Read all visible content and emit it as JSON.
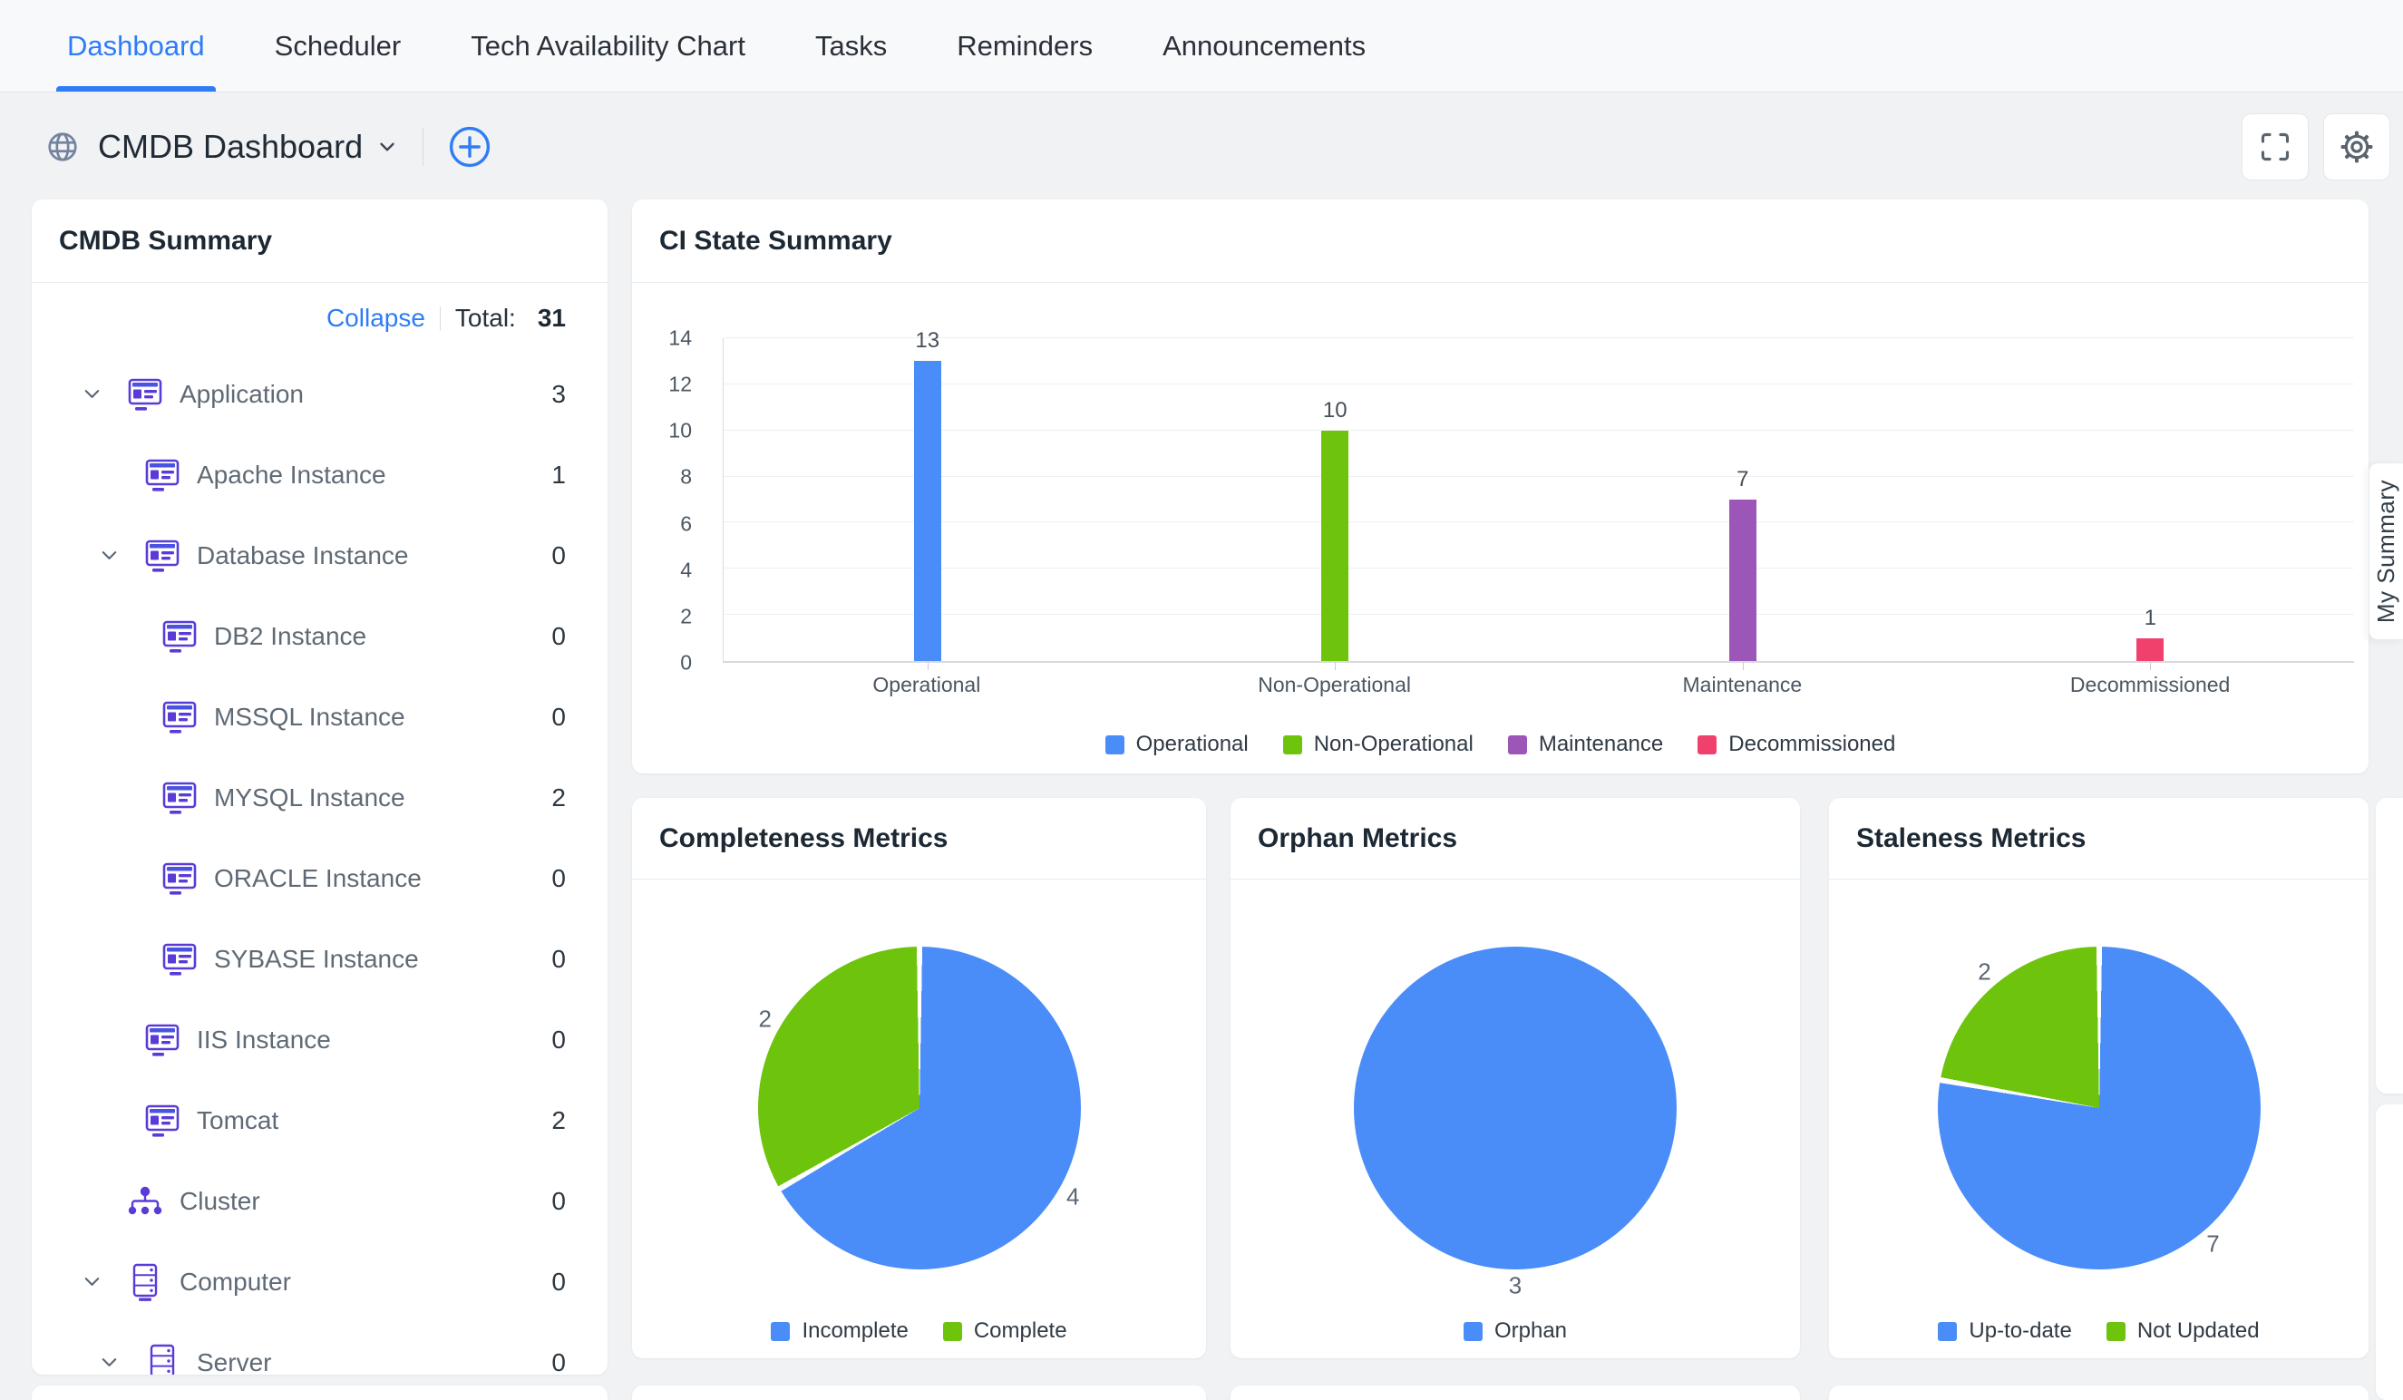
{
  "nav": {
    "tabs": [
      {
        "label": "Dashboard",
        "active": true
      },
      {
        "label": "Scheduler",
        "active": false
      },
      {
        "label": "Tech Availability Chart",
        "active": false
      },
      {
        "label": "Tasks",
        "active": false
      },
      {
        "label": "Reminders",
        "active": false
      },
      {
        "label": "Announcements",
        "active": false
      }
    ]
  },
  "header": {
    "title": "CMDB Dashboard"
  },
  "cmdb_summary": {
    "title": "CMDB Summary",
    "collapse_label": "Collapse",
    "total_label": "Total:",
    "total_value": "31",
    "items": [
      {
        "label": "Application",
        "count": 3,
        "level": 0,
        "expandable": true,
        "icon": "application-icon"
      },
      {
        "label": "Apache Instance",
        "count": 1,
        "level": 1,
        "expandable": false,
        "icon": "application-icon"
      },
      {
        "label": "Database Instance",
        "count": 0,
        "level": 1,
        "expandable": true,
        "icon": "application-icon"
      },
      {
        "label": "DB2 Instance",
        "count": 0,
        "level": 2,
        "expandable": false,
        "icon": "application-icon"
      },
      {
        "label": "MSSQL Instance",
        "count": 0,
        "level": 2,
        "expandable": false,
        "icon": "application-icon"
      },
      {
        "label": "MYSQL Instance",
        "count": 2,
        "level": 2,
        "expandable": false,
        "icon": "application-icon"
      },
      {
        "label": "ORACLE Instance",
        "count": 0,
        "level": 2,
        "expandable": false,
        "icon": "application-icon"
      },
      {
        "label": "SYBASE Instance",
        "count": 0,
        "level": 2,
        "expandable": false,
        "icon": "application-icon"
      },
      {
        "label": "IIS Instance",
        "count": 0,
        "level": 1,
        "expandable": false,
        "icon": "application-icon"
      },
      {
        "label": "Tomcat",
        "count": 2,
        "level": 1,
        "expandable": false,
        "icon": "application-icon"
      },
      {
        "label": "Cluster",
        "count": 0,
        "level": 0,
        "expandable": false,
        "icon": "cluster-icon"
      },
      {
        "label": "Computer",
        "count": 0,
        "level": 0,
        "expandable": true,
        "icon": "computer-icon"
      },
      {
        "label": "Server",
        "count": 0,
        "level": 1,
        "expandable": true,
        "icon": "computer-icon"
      }
    ]
  },
  "chart_data": [
    {
      "id": "ci_state",
      "type": "bar",
      "title": "CI State Summary",
      "categories": [
        "Operational",
        "Non-Operational",
        "Maintenance",
        "Decommissioned"
      ],
      "values": [
        13,
        10,
        7,
        1
      ],
      "colors": [
        "#4A8DF8",
        "#6EC40C",
        "#9C56B8",
        "#F0416C"
      ],
      "ylabel": "",
      "xlabel": "",
      "ylim": [
        0,
        14
      ],
      "ytick_step": 2,
      "grid": true,
      "legend": [
        "Operational",
        "Non-Operational",
        "Maintenance",
        "Decommissioned"
      ],
      "legend_position": "bottom"
    },
    {
      "id": "completeness",
      "type": "pie",
      "title": "Completeness Metrics",
      "labels": [
        "Incomplete",
        "Complete"
      ],
      "values": [
        4,
        2
      ],
      "colors": [
        "#4A8DF8",
        "#6EC40C"
      ],
      "start_angle_deg": 0,
      "legend_position": "bottom"
    },
    {
      "id": "orphan",
      "type": "pie",
      "title": "Orphan Metrics",
      "labels": [
        "Orphan"
      ],
      "values": [
        3
      ],
      "colors": [
        "#4A8DF8"
      ],
      "start_angle_deg": 0,
      "legend_position": "bottom"
    },
    {
      "id": "staleness",
      "type": "pie",
      "title": "Staleness Metrics",
      "labels": [
        "Up-to-date",
        "Not Updated"
      ],
      "values": [
        7,
        2
      ],
      "colors": [
        "#4A8DF8",
        "#6EC40C"
      ],
      "start_angle_deg": 0,
      "legend_position": "bottom"
    }
  ],
  "my_summary_tab": {
    "label": "My Summary"
  },
  "colors": {
    "accent_blue": "#2E7CF6",
    "chart_blue": "#4A8DF8",
    "chart_green": "#6EC40C",
    "chart_purple": "#9C56B8",
    "chart_pink": "#F0416C",
    "tree_icon_purple": "#5B3BD8"
  }
}
